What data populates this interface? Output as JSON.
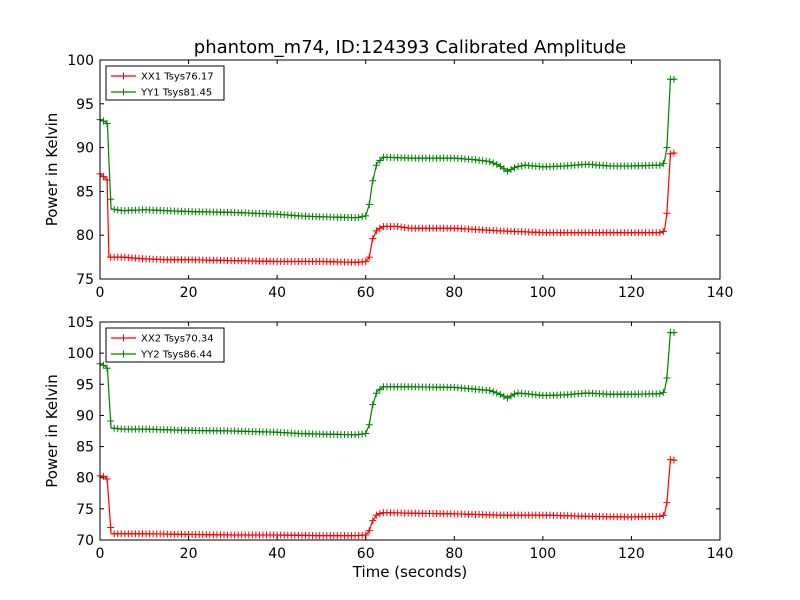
{
  "figure": {
    "title": "phantom_m74, ID:124393 Calibrated Amplitude"
  },
  "chart_data": [
    {
      "type": "line",
      "title": "phantom_m74, ID:124393 Calibrated Amplitude",
      "xlabel": "",
      "ylabel": "Power in Kelvin",
      "xlim": [
        0,
        140
      ],
      "ylim": [
        75,
        100
      ],
      "xticks": [
        "0",
        "20",
        "40",
        "60",
        "80",
        "100",
        "120",
        "140"
      ],
      "yticks": [
        "75",
        "80",
        "85",
        "90",
        "95",
        "100"
      ],
      "grid": false,
      "legend_position": "top-left",
      "series": [
        {
          "name": "XX1 Tsys76.17",
          "color": "#ff0000",
          "marker": "plus",
          "points": [
            [
              0,
              87
            ],
            [
              1,
              86.6
            ],
            [
              1.6,
              86.3
            ],
            [
              2,
              77.5
            ],
            [
              5,
              77.5
            ],
            [
              10,
              77.3
            ],
            [
              15,
              77.2
            ],
            [
              20,
              77.2
            ],
            [
              30,
              77.1
            ],
            [
              40,
              77.0
            ],
            [
              50,
              77.0
            ],
            [
              58,
              76.9
            ],
            [
              60,
              77.0
            ],
            [
              60.8,
              77.5
            ],
            [
              61.5,
              79.5
            ],
            [
              62.5,
              80.6
            ],
            [
              64,
              81.0
            ],
            [
              67,
              81.0
            ],
            [
              70,
              80.8
            ],
            [
              80,
              80.8
            ],
            [
              90,
              80.5
            ],
            [
              100,
              80.3
            ],
            [
              110,
              80.3
            ],
            [
              120,
              80.3
            ],
            [
              127,
              80.3
            ],
            [
              127.5,
              80.6
            ],
            [
              128,
              82.5
            ],
            [
              128.8,
              89.3
            ],
            [
              130,
              89.4
            ]
          ]
        },
        {
          "name": "YY1 Tsys81.45",
          "color": "#008000",
          "marker": "plus",
          "points": [
            [
              0,
              93.2
            ],
            [
              1,
              93.0
            ],
            [
              1.7,
              92.7
            ],
            [
              2,
              88.5
            ],
            [
              2.5,
              83.0
            ],
            [
              5,
              82.8
            ],
            [
              10,
              82.9
            ],
            [
              20,
              82.7
            ],
            [
              30,
              82.6
            ],
            [
              40,
              82.4
            ],
            [
              45,
              82.2
            ],
            [
              50,
              82.1
            ],
            [
              58,
              82.0
            ],
            [
              60,
              82.2
            ],
            [
              60.8,
              83.5
            ],
            [
              61.5,
              86.0
            ],
            [
              62.5,
              88.2
            ],
            [
              64,
              88.9
            ],
            [
              70,
              88.8
            ],
            [
              80,
              88.8
            ],
            [
              85,
              88.6
            ],
            [
              88,
              88.4
            ],
            [
              90,
              88.0
            ],
            [
              92,
              87.3
            ],
            [
              94,
              87.8
            ],
            [
              96,
              88.0
            ],
            [
              100,
              87.8
            ],
            [
              105,
              87.9
            ],
            [
              110,
              88.1
            ],
            [
              115,
              87.9
            ],
            [
              120,
              87.9
            ],
            [
              127,
              88.0
            ],
            [
              127.5,
              88.5
            ],
            [
              128,
              90
            ],
            [
              128.8,
              97.8
            ],
            [
              130,
              97.8
            ]
          ]
        }
      ]
    },
    {
      "type": "line",
      "title": "",
      "xlabel": "Time (seconds)",
      "ylabel": "Power in Kelvin",
      "xlim": [
        0,
        140
      ],
      "ylim": [
        70,
        105
      ],
      "xticks": [
        "0",
        "20",
        "40",
        "60",
        "80",
        "100",
        "120",
        "140"
      ],
      "yticks": [
        "70",
        "75",
        "80",
        "85",
        "90",
        "95",
        "100",
        "105"
      ],
      "grid": false,
      "legend_position": "top-left",
      "series": [
        {
          "name": "XX2 Tsys70.34",
          "color": "#ff0000",
          "marker": "plus",
          "points": [
            [
              0,
              80.3
            ],
            [
              1,
              80.2
            ],
            [
              1.6,
              79.8
            ],
            [
              2,
              76
            ],
            [
              2.5,
              71.0
            ],
            [
              5,
              71.0
            ],
            [
              10,
              71.0
            ],
            [
              20,
              70.9
            ],
            [
              30,
              70.8
            ],
            [
              40,
              70.8
            ],
            [
              50,
              70.7
            ],
            [
              58,
              70.7
            ],
            [
              60,
              70.8
            ],
            [
              60.8,
              71.5
            ],
            [
              61.5,
              73.0
            ],
            [
              62.5,
              74.1
            ],
            [
              64,
              74.4
            ],
            [
              70,
              74.3
            ],
            [
              80,
              74.2
            ],
            [
              90,
              74.0
            ],
            [
              100,
              74.0
            ],
            [
              110,
              73.8
            ],
            [
              120,
              73.7
            ],
            [
              127,
              73.8
            ],
            [
              127.5,
              74.2
            ],
            [
              128,
              76
            ],
            [
              128.8,
              82.9
            ],
            [
              130,
              82.8
            ]
          ]
        },
        {
          "name": "YY2 Tsys86.44",
          "color": "#008000",
          "marker": "plus",
          "points": [
            [
              0,
              98.3
            ],
            [
              1,
              98.0
            ],
            [
              1.7,
              97.5
            ],
            [
              2,
              93.5
            ],
            [
              2.5,
              88.0
            ],
            [
              5,
              87.8
            ],
            [
              10,
              87.8
            ],
            [
              20,
              87.6
            ],
            [
              30,
              87.5
            ],
            [
              40,
              87.3
            ],
            [
              45,
              87.1
            ],
            [
              50,
              87.0
            ],
            [
              58,
              86.9
            ],
            [
              60,
              87.1
            ],
            [
              60.8,
              88.5
            ],
            [
              61.5,
              91.5
            ],
            [
              62.5,
              93.8
            ],
            [
              64,
              94.6
            ],
            [
              70,
              94.6
            ],
            [
              80,
              94.5
            ],
            [
              85,
              94.2
            ],
            [
              88,
              94.0
            ],
            [
              90,
              93.5
            ],
            [
              92,
              92.8
            ],
            [
              94,
              93.6
            ],
            [
              96,
              93.5
            ],
            [
              100,
              93.2
            ],
            [
              105,
              93.3
            ],
            [
              110,
              93.6
            ],
            [
              115,
              93.4
            ],
            [
              120,
              93.4
            ],
            [
              127,
              93.5
            ],
            [
              127.5,
              94
            ],
            [
              128,
              96
            ],
            [
              128.8,
              103.3
            ],
            [
              130,
              103.3
            ]
          ]
        }
      ]
    }
  ]
}
